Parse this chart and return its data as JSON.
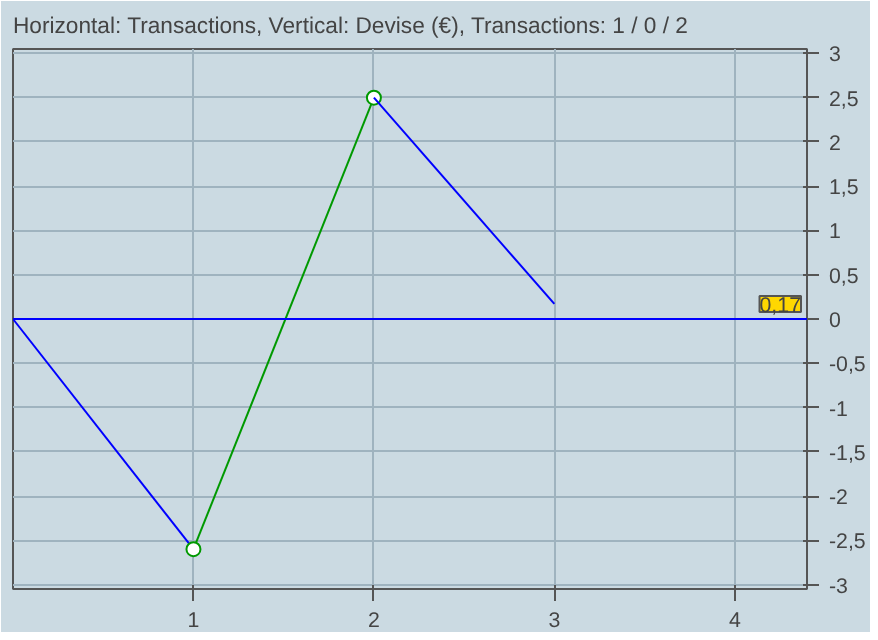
{
  "chart_data": {
    "type": "line",
    "title": "Horizontal: Transactions, Vertical: Devise (€), Transactions: 1 / 0 / 2",
    "series": [
      {
        "color": "#0000ff",
        "x": [
          0,
          1
        ],
        "values": [
          0,
          -2.6
        ]
      },
      {
        "color": "#009900",
        "x": [
          1,
          2
        ],
        "values": [
          -2.6,
          2.5
        ],
        "marker": "circle"
      },
      {
        "color": "#0000ff",
        "x": [
          2,
          3
        ],
        "values": [
          2.5,
          0.17
        ]
      }
    ],
    "xlim": [
      0,
      4.4
    ],
    "xticks": [
      1,
      2,
      3,
      4
    ],
    "ylim": [
      -3.05,
      3.05
    ],
    "yticks": [
      {
        "value": -3,
        "label": "-3"
      },
      {
        "value": -2.5,
        "label": "-2,5"
      },
      {
        "value": -2,
        "label": "-2"
      },
      {
        "value": -1.5,
        "label": "-1,5"
      },
      {
        "value": -1,
        "label": "-1"
      },
      {
        "value": -0.5,
        "label": "-0,5"
      },
      {
        "value": 0,
        "label": "0"
      },
      {
        "value": 0.5,
        "label": "0,5"
      },
      {
        "value": 1,
        "label": "1"
      },
      {
        "value": 1.5,
        "label": "1,5"
      },
      {
        "value": 2,
        "label": "2"
      },
      {
        "value": 2.5,
        "label": "2,5"
      },
      {
        "value": 3,
        "label": "3"
      }
    ],
    "ref_lines": [
      {
        "axis": "y",
        "value": 0,
        "color": "#0000ff"
      }
    ],
    "annotations": [
      {
        "text": "0,17",
        "y": 0.17
      }
    ],
    "grid": true
  }
}
